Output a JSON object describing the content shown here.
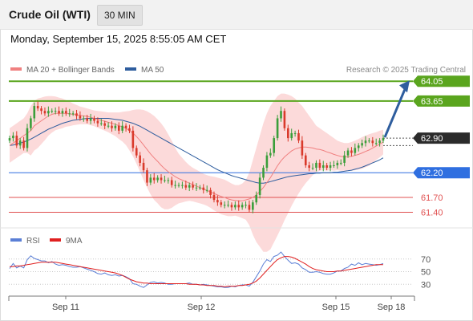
{
  "header": {
    "title": "Crude Oil (WTI)",
    "timeframe": "30 MIN",
    "timestamp": "Monday, September 15, 2025 8:55:05 AM CET"
  },
  "main_legend": {
    "items": [
      {
        "label": "MA 20 + Bollinger Bands",
        "color": "#f08080"
      },
      {
        "label": "MA 50",
        "color": "#2e5d9e"
      }
    ],
    "copyright": "Research © 2025 Trading Central"
  },
  "rsi_legend": {
    "items": [
      {
        "label": "RSI",
        "color": "#5b7fd6"
      },
      {
        "label": "9MA",
        "color": "#e02020"
      }
    ]
  },
  "colors": {
    "resistance": "#5aa51e",
    "pivot": "#2f6fe0",
    "support": "#e05050",
    "last_price": "#2b2b2b",
    "bullish_candle": "#3a9e3a",
    "bearish_candle": "#d93a2b",
    "bollinger_fill": "#fbd3d3",
    "arrow": "#2e5d9e"
  },
  "chart_data": {
    "type": "candlestick",
    "ylim": [
      61.1,
      64.2
    ],
    "x_labels": [
      "Sep 11",
      "Sep 12",
      "Sep 15",
      "Sep 18"
    ],
    "levels": [
      {
        "name": "resistance-2",
        "value": 64.05,
        "label": "64.05",
        "kind": "resistance"
      },
      {
        "name": "resistance-1",
        "value": 63.65,
        "label": "63.65",
        "kind": "resistance"
      },
      {
        "name": "last-price",
        "value": 62.9,
        "label": "62.90",
        "kind": "last"
      },
      {
        "name": "pivot",
        "value": 62.2,
        "label": "62.20",
        "kind": "pivot"
      },
      {
        "name": "support-1",
        "value": 61.7,
        "label": "61.70",
        "kind": "support"
      },
      {
        "name": "support-2",
        "value": 61.4,
        "label": "61.40",
        "kind": "support"
      }
    ],
    "close": [
      62.9,
      62.95,
      62.75,
      62.85,
      62.7,
      63.1,
      63.3,
      63.55,
      63.5,
      63.45,
      63.4,
      63.45,
      63.45,
      63.45,
      63.4,
      63.45,
      63.4,
      63.4,
      63.4,
      63.35,
      63.3,
      63.3,
      63.25,
      63.3,
      63.25,
      63.2,
      63.2,
      63.15,
      63.15,
      63.1,
      63.15,
      63.05,
      63.15,
      63.1,
      63.05,
      62.7,
      62.55,
      62.4,
      62.25,
      62.0,
      62.1,
      62.05,
      62.1,
      62.05,
      62.05,
      62.05,
      61.95,
      61.95,
      61.95,
      61.95,
      61.9,
      61.95,
      61.9,
      61.9,
      61.9,
      61.85,
      61.85,
      61.75,
      61.65,
      61.6,
      61.55,
      61.55,
      61.55,
      61.5,
      61.55,
      61.5,
      61.55,
      61.55,
      61.45,
      61.6,
      61.75,
      62.1,
      62.3,
      62.55,
      62.6,
      62.9,
      63.3,
      63.45,
      63.1,
      62.9,
      63.0,
      63.0,
      62.85,
      62.55,
      62.35,
      62.3,
      62.3,
      62.4,
      62.3,
      62.35,
      62.3,
      62.35,
      62.35,
      62.4,
      62.4,
      62.55,
      62.65,
      62.6,
      62.7,
      62.75,
      62.8,
      62.85,
      62.85,
      62.8,
      62.8,
      62.85,
      62.9
    ],
    "ma20": [
      62.75,
      62.8,
      62.85,
      62.9,
      62.95,
      63.0,
      63.05,
      63.15,
      63.2,
      63.25,
      63.3,
      63.35,
      63.38,
      63.4,
      63.4,
      63.4,
      63.4,
      63.39,
      63.38,
      63.37,
      63.36,
      63.35,
      63.34,
      63.32,
      63.3,
      63.28,
      63.26,
      63.24,
      63.22,
      63.2,
      63.18,
      63.15,
      63.13,
      63.1,
      63.05,
      63.0,
      62.93,
      62.85,
      62.76,
      62.67,
      62.58,
      62.5,
      62.43,
      62.35,
      62.28,
      62.22,
      62.17,
      62.12,
      62.08,
      62.05,
      62.02,
      61.99,
      61.96,
      61.93,
      61.9,
      61.87,
      61.84,
      61.81,
      61.78,
      61.75,
      61.72,
      61.7,
      61.67,
      61.65,
      61.64,
      61.63,
      61.63,
      61.65,
      61.67,
      61.7,
      61.75,
      61.82,
      61.9,
      62.0,
      62.1,
      62.22,
      62.34,
      62.44,
      62.52,
      62.58,
      62.64,
      62.68,
      62.7,
      62.72,
      62.72,
      62.71,
      62.7,
      62.68,
      62.67,
      62.65,
      62.62,
      62.6,
      62.57,
      62.55,
      62.53,
      62.52,
      62.52,
      62.53,
      62.55,
      62.57,
      62.6,
      62.63,
      62.66,
      62.7,
      62.74,
      62.78,
      62.82
    ],
    "bb_upper": [
      63.1,
      63.15,
      63.2,
      63.25,
      63.3,
      63.4,
      63.55,
      63.65,
      63.7,
      63.72,
      63.74,
      63.75,
      63.75,
      63.74,
      63.72,
      63.7,
      63.67,
      63.64,
      63.6,
      63.57,
      63.54,
      63.52,
      63.5,
      63.48,
      63.46,
      63.45,
      63.44,
      63.43,
      63.42,
      63.42,
      63.42,
      63.42,
      63.43,
      63.44,
      63.45,
      63.47,
      63.48,
      63.48,
      63.47,
      63.44,
      63.4,
      63.35,
      63.28,
      63.2,
      63.1,
      62.98,
      62.85,
      62.7,
      62.58,
      62.5,
      62.42,
      62.35,
      62.3,
      62.26,
      62.22,
      62.18,
      62.15,
      62.13,
      62.12,
      62.1,
      62.08,
      62.06,
      62.02,
      61.98,
      61.95,
      61.95,
      61.98,
      62.05,
      62.2,
      62.45,
      62.7,
      62.95,
      63.2,
      63.4,
      63.55,
      63.65,
      63.75,
      63.8,
      63.8,
      63.78,
      63.75,
      63.7,
      63.62,
      63.55,
      63.45,
      63.35,
      63.25,
      63.15,
      63.1,
      63.05,
      63.0,
      62.95,
      62.9,
      62.85,
      62.82,
      62.8,
      62.8,
      62.82,
      62.85,
      62.88,
      62.92,
      62.95,
      62.98,
      63.0,
      63.02,
      63.05,
      63.07
    ],
    "bb_lower": [
      62.4,
      62.45,
      62.5,
      62.55,
      62.6,
      62.6,
      62.55,
      62.65,
      62.7,
      62.78,
      62.86,
      62.95,
      63.01,
      63.06,
      63.08,
      63.1,
      63.13,
      63.14,
      63.16,
      63.17,
      63.18,
      63.18,
      63.18,
      63.16,
      63.14,
      63.11,
      63.08,
      63.05,
      63.02,
      62.98,
      62.94,
      62.88,
      62.83,
      62.76,
      62.65,
      62.53,
      62.38,
      62.22,
      62.05,
      61.9,
      61.76,
      61.65,
      61.58,
      61.5,
      61.46,
      61.46,
      61.49,
      61.54,
      61.58,
      61.6,
      61.62,
      61.63,
      61.62,
      61.6,
      61.58,
      61.56,
      61.53,
      61.49,
      61.44,
      61.4,
      61.36,
      61.34,
      61.32,
      61.32,
      61.33,
      61.31,
      61.28,
      61.25,
      61.14,
      60.95,
      60.8,
      60.7,
      60.6,
      60.6,
      60.65,
      60.79,
      60.93,
      61.08,
      61.24,
      61.38,
      61.53,
      61.66,
      61.78,
      61.89,
      61.99,
      62.07,
      62.15,
      62.21,
      62.24,
      62.25,
      62.24,
      62.25,
      62.24,
      62.25,
      62.24,
      62.24,
      62.24,
      62.24,
      62.25,
      62.26,
      62.28,
      62.31,
      62.34,
      62.4,
      62.46,
      62.51,
      62.57
    ],
    "ma50": [
      62.75,
      62.76,
      62.78,
      62.8,
      62.82,
      62.85,
      62.88,
      62.92,
      62.96,
      63.0,
      63.04,
      63.08,
      63.11,
      63.14,
      63.17,
      63.2,
      63.22,
      63.24,
      63.26,
      63.27,
      63.28,
      63.29,
      63.3,
      63.3,
      63.3,
      63.3,
      63.3,
      63.3,
      63.3,
      63.29,
      63.28,
      63.27,
      63.26,
      63.24,
      63.22,
      63.2,
      63.17,
      63.14,
      63.1,
      63.06,
      63.02,
      62.98,
      62.94,
      62.9,
      62.86,
      62.82,
      62.78,
      62.74,
      62.7,
      62.66,
      62.62,
      62.58,
      62.54,
      62.5,
      62.46,
      62.42,
      62.38,
      62.34,
      62.3,
      62.26,
      62.23,
      62.2,
      62.17,
      62.14,
      62.12,
      62.1,
      62.08,
      62.06,
      62.04,
      62.02,
      62.0,
      61.99,
      61.99,
      62.0,
      62.02,
      62.04,
      62.06,
      62.08,
      62.1,
      62.12,
      62.13,
      62.14,
      62.15,
      62.16,
      62.17,
      62.18,
      62.18,
      62.19,
      62.19,
      62.2,
      62.2,
      62.2,
      62.21,
      62.21,
      62.22,
      62.23,
      62.24,
      62.25,
      62.27,
      62.29,
      62.31,
      62.34,
      62.37,
      62.4,
      62.43,
      62.46,
      62.5
    ],
    "projection": {
      "from": 62.9,
      "to": 64.05
    },
    "rsi": {
      "ylim": [
        10,
        90
      ],
      "ticks": [
        70,
        50,
        30
      ],
      "rsi": [
        55.0,
        63.0,
        56.0,
        59.0,
        56.0,
        69.0,
        75.0,
        71.0,
        69.0,
        67.0,
        67.0,
        64.0,
        66.0,
        62.0,
        60.0,
        61.0,
        60.0,
        58.0,
        57.0,
        57.0,
        58.0,
        56.0,
        54.0,
        52.0,
        50.0,
        47.0,
        46.0,
        48.0,
        45.0,
        44.0,
        45.0,
        43.0,
        44.0,
        42.0,
        39.0,
        31.0,
        30.0,
        27.0,
        25.0,
        29.0,
        33.0,
        34.0,
        32.0,
        33.0,
        32.0,
        30.0,
        30.0,
        31.0,
        31.0,
        31.0,
        31.0,
        32.0,
        30.0,
        30.0,
        29.0,
        30.0,
        29.0,
        28.0,
        27.0,
        26.0,
        26.0,
        25.0,
        25.0,
        27.0,
        26.0,
        28.0,
        29.0,
        29.0,
        27.0,
        33.0,
        42.0,
        51.0,
        62.0,
        69.0,
        66.0,
        74.0,
        76.0,
        81.0,
        74.0,
        68.0,
        63.0,
        64.0,
        62.0,
        56.0,
        53.0,
        49.0,
        49.0,
        50.0,
        49.0,
        47.0,
        46.0,
        46.0,
        48.0,
        51.0,
        51.0,
        55.0,
        57.0,
        62.0,
        60.0,
        64.0,
        61.0,
        63.0,
        62.0,
        61.0,
        60.0,
        61.0,
        63.0
      ],
      "ma9": [
        58.0,
        58.0,
        59.0,
        59.0,
        60.0,
        61.0,
        62.0,
        63.0,
        64.0,
        65.0,
        65.0,
        65.0,
        65.0,
        65.0,
        64.0,
        63.0,
        62.0,
        61.0,
        60.0,
        59.0,
        58.0,
        57.0,
        56.0,
        55.0,
        54.0,
        53.0,
        52.0,
        51.0,
        50.0,
        49.0,
        48.0,
        46.0,
        44.0,
        41.0,
        38.0,
        36.0,
        34.0,
        33.0,
        32.0,
        32.0,
        31.0,
        31.0,
        31.0,
        31.0,
        31.0,
        31.0,
        31.0,
        31.0,
        31.0,
        31.0,
        31.0,
        30.0,
        30.0,
        30.0,
        29.0,
        29.0,
        28.0,
        28.0,
        28.0,
        27.0,
        27.0,
        26.0,
        27.0,
        27.0,
        27.0,
        28.0,
        28.0,
        29.0,
        30.0,
        32.0,
        35.0,
        40.0,
        46.0,
        52.0,
        58.0,
        64.0,
        69.0,
        72.0,
        74.0,
        74.0,
        73.0,
        71.0,
        68.0,
        65.0,
        62.0,
        58.0,
        55.0,
        53.0,
        52.0,
        51.0,
        50.0,
        50.0,
        50.0,
        51.0,
        51.0,
        52.0,
        53.0,
        54.0,
        55.0,
        56.0,
        57.0,
        58.0,
        59.0,
        60.0,
        61.0,
        61.0,
        61.0
      ]
    }
  }
}
